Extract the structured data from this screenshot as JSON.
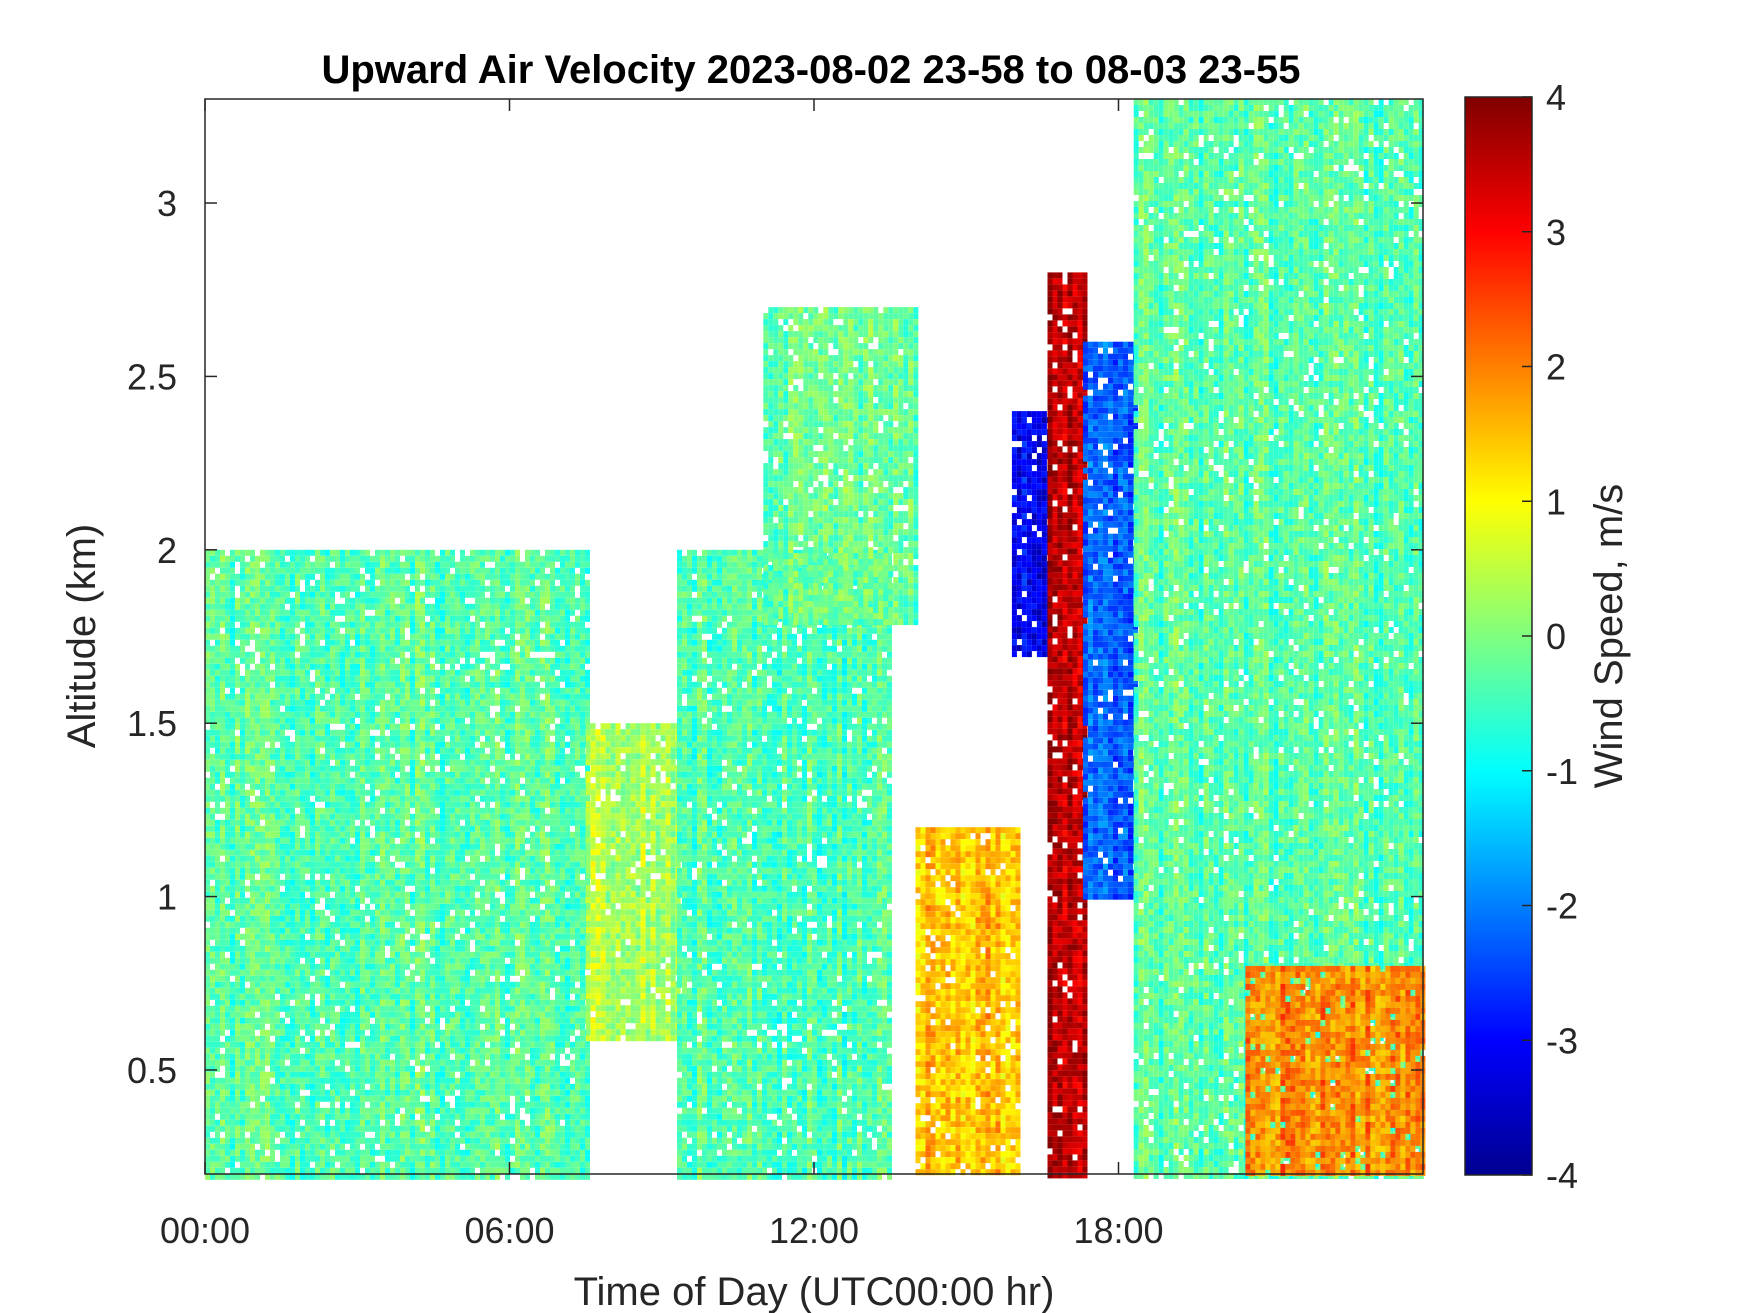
{
  "chart_data": {
    "type": "heatmap",
    "title": "Upward Air Velocity 2023-08-02 23-58 to 08-03 23-55",
    "xlabel": "Time of Day (UTC00:00 hr)",
    "ylabel": "Altitude (km)",
    "xlim": [
      0,
      24
    ],
    "ylim": [
      0.2,
      3.3
    ],
    "x_ticks": [
      0,
      6,
      12,
      18
    ],
    "x_tick_labels": [
      "00:00",
      "06:00",
      "12:00",
      "18:00"
    ],
    "y_ticks": [
      0.5,
      1,
      1.5,
      2,
      2.5,
      3
    ],
    "y_tick_labels": [
      "0.5",
      "1",
      "1.5",
      "2",
      "2.5",
      "3"
    ],
    "colorbar": {
      "label": "Wind Speed, m/s",
      "colormap": "jet",
      "range": [
        -4,
        4
      ],
      "ticks": [
        -4,
        -3,
        -2,
        -1,
        0,
        1,
        2,
        3,
        4
      ],
      "tick_labels": [
        "-4",
        "-3",
        "-2",
        "-1",
        "0",
        "1",
        "2",
        "3",
        "4"
      ]
    },
    "regions": [
      {
        "t": [
          0,
          7.5
        ],
        "alt": [
          0.2,
          2.0
        ],
        "value": -0.3
      },
      {
        "t": [
          7.5,
          9.3
        ],
        "alt": [
          0.6,
          1.5
        ],
        "value": 0.4
      },
      {
        "t": [
          9.3,
          13.5
        ],
        "alt": [
          0.2,
          2.0
        ],
        "value": -0.4
      },
      {
        "t": [
          11,
          14
        ],
        "alt": [
          1.8,
          2.7
        ],
        "value": -0.2
      },
      {
        "t": [
          14,
          16
        ],
        "alt": [
          0.2,
          1.2
        ],
        "value": 1.5
      },
      {
        "t": [
          15.9,
          16.6
        ],
        "alt": [
          1.7,
          2.4
        ],
        "value": -3.0
      },
      {
        "t": [
          16.6,
          17.3
        ],
        "alt": [
          0.2,
          2.8
        ],
        "value": 3.6
      },
      {
        "t": [
          17.3,
          18.3
        ],
        "alt": [
          1.0,
          2.6
        ],
        "value": -2.3
      },
      {
        "t": [
          18.3,
          24
        ],
        "alt": [
          0.2,
          3.3
        ],
        "value": -0.3
      },
      {
        "t": [
          20.5,
          24
        ],
        "alt": [
          0.2,
          0.8
        ],
        "value": 2.0
      }
    ]
  }
}
